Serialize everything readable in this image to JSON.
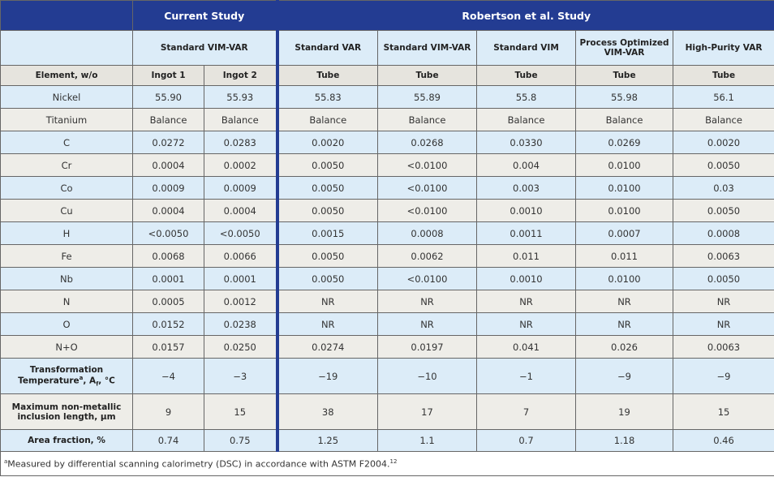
{
  "groups": [
    "Current Study",
    "Robertson et al. Study"
  ],
  "processes": [
    "Standard VIM-VAR",
    "Standard VAR",
    "Standard VIM-VAR",
    "Standard VIM",
    "Process Optimized VIM-VAR",
    "High-Purity VAR"
  ],
  "forms": [
    "Element, w/o",
    "Ingot 1",
    "Ingot 2",
    "Tube",
    "Tube",
    "Tube",
    "Tube",
    "Tube"
  ],
  "rows": [
    {
      "label": "Nickel",
      "cells": [
        "55.90",
        "55.93",
        "55.83",
        "55.89",
        "55.8",
        "55.98",
        "56.1"
      ]
    },
    {
      "label": "Titanium",
      "cells": [
        "Balance",
        "Balance",
        "Balance",
        "Balance",
        "Balance",
        "Balance",
        "Balance"
      ]
    },
    {
      "label": "C",
      "cells": [
        "0.0272",
        "0.0283",
        "0.0020",
        "0.0268",
        "0.0330",
        "0.0269",
        "0.0020"
      ]
    },
    {
      "label": "Cr",
      "cells": [
        "0.0004",
        "0.0002",
        "0.0050",
        "<0.0100",
        "0.004",
        "0.0100",
        "0.0050"
      ]
    },
    {
      "label": "Co",
      "cells": [
        "0.0009",
        "0.0009",
        "0.0050",
        "<0.0100",
        "0.003",
        "0.0100",
        "0.03"
      ]
    },
    {
      "label": "Cu",
      "cells": [
        "0.0004",
        "0.0004",
        "0.0050",
        "<0.0100",
        "0.0010",
        "0.0100",
        "0.0050"
      ]
    },
    {
      "label": "H",
      "cells": [
        "<0.0050",
        "<0.0050",
        "0.0015",
        "0.0008",
        "0.0011",
        "0.0007",
        "0.0008"
      ]
    },
    {
      "label": "Fe",
      "cells": [
        "0.0068",
        "0.0066",
        "0.0050",
        "0.0062",
        "0.011",
        "0.011",
        "0.0063"
      ]
    },
    {
      "label": "Nb",
      "cells": [
        "0.0001",
        "0.0001",
        "0.0050",
        "<0.0100",
        "0.0010",
        "0.0100",
        "0.0050"
      ]
    },
    {
      "label": "N",
      "cells": [
        "0.0005",
        "0.0012",
        "NR",
        "NR",
        "NR",
        "NR",
        "NR"
      ]
    },
    {
      "label": "O",
      "cells": [
        "0.0152",
        "0.0238",
        "NR",
        "NR",
        "NR",
        "NR",
        "NR"
      ]
    },
    {
      "label": "N+O",
      "cells": [
        "0.0157",
        "0.0250",
        "0.0274",
        "0.0197",
        "0.041",
        "0.026",
        "0.0063"
      ]
    },
    {
      "label": [
        "Transformation Temperature",
        "a",
        ", A",
        "f",
        ", °C"
      ],
      "cells": [
        "−4",
        "−3",
        "−19",
        "−10",
        "−1",
        "−9",
        "−9"
      ]
    },
    {
      "label": "Maximum non-metallic inclusion length, µm",
      "cells": [
        "9",
        "15",
        "38",
        "17",
        "7",
        "19",
        "15"
      ]
    },
    {
      "label": "Area fraction, %",
      "cells": [
        "0.74",
        "0.75",
        "1.25",
        "1.1",
        "0.7",
        "1.18",
        "0.46"
      ]
    }
  ],
  "footnote": {
    "marker": "a",
    "text": "Measured by differential scanning calorimetry (DSC) in accordance with ASTM F2004.",
    "ref": "12"
  }
}
